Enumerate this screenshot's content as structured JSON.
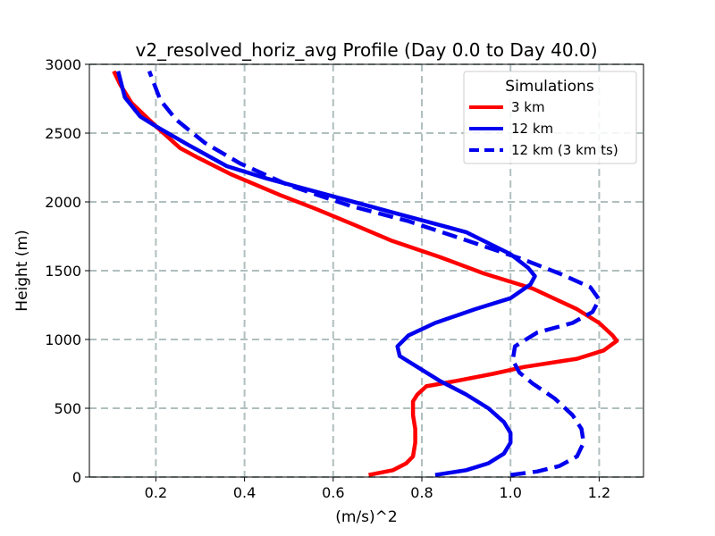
{
  "chart_data": {
    "type": "line",
    "title": "v2_resolved_horiz_avg Profile (Day 0.0 to Day 40.0)",
    "xlabel": "(m/s)^2",
    "ylabel": "Height (m)",
    "xlim": [
      0.05,
      1.3
    ],
    "ylim": [
      0,
      3000
    ],
    "xticks": [
      0.2,
      0.4,
      0.6,
      0.8,
      1.0,
      1.2
    ],
    "xtick_labels": [
      "0.2",
      "0.4",
      "0.6",
      "0.8",
      "1.0",
      "1.2"
    ],
    "yticks": [
      0,
      500,
      1000,
      1500,
      2000,
      2500,
      3000
    ],
    "ytick_labels": [
      "0",
      "500",
      "1000",
      "1500",
      "2000",
      "2500",
      "3000"
    ],
    "grid": true,
    "legend": {
      "title": "Simulations",
      "position": "top-right"
    },
    "series": [
      {
        "name": "3 km",
        "color": "#ff0000",
        "style": "solid",
        "points": [
          [
            0.68,
            15
          ],
          [
            0.735,
            50
          ],
          [
            0.765,
            100
          ],
          [
            0.78,
            150
          ],
          [
            0.785,
            250
          ],
          [
            0.785,
            350
          ],
          [
            0.78,
            450
          ],
          [
            0.78,
            550
          ],
          [
            0.79,
            600
          ],
          [
            0.81,
            660
          ],
          [
            0.88,
            700
          ],
          [
            0.96,
            750
          ],
          [
            1.03,
            800
          ],
          [
            1.15,
            860
          ],
          [
            1.21,
            920
          ],
          [
            1.24,
            990
          ],
          [
            1.23,
            1030
          ],
          [
            1.2,
            1120
          ],
          [
            1.15,
            1220
          ],
          [
            1.05,
            1370
          ],
          [
            0.94,
            1480
          ],
          [
            0.84,
            1600
          ],
          [
            0.73,
            1720
          ],
          [
            0.65,
            1830
          ],
          [
            0.56,
            1950
          ],
          [
            0.48,
            2050
          ],
          [
            0.37,
            2200
          ],
          [
            0.29,
            2330
          ],
          [
            0.255,
            2390
          ],
          [
            0.2,
            2550
          ],
          [
            0.145,
            2720
          ],
          [
            0.12,
            2850
          ],
          [
            0.105,
            2950
          ]
        ]
      },
      {
        "name": "12 km",
        "color": "#0000ee",
        "style": "solid",
        "points": [
          [
            0.83,
            15
          ],
          [
            0.9,
            50
          ],
          [
            0.95,
            100
          ],
          [
            0.985,
            170
          ],
          [
            1.0,
            250
          ],
          [
            1.0,
            320
          ],
          [
            0.985,
            400
          ],
          [
            0.95,
            500
          ],
          [
            0.9,
            600
          ],
          [
            0.84,
            700
          ],
          [
            0.79,
            800
          ],
          [
            0.75,
            880
          ],
          [
            0.745,
            950
          ],
          [
            0.77,
            1030
          ],
          [
            0.83,
            1120
          ],
          [
            0.92,
            1220
          ],
          [
            1.0,
            1300
          ],
          [
            1.045,
            1400
          ],
          [
            1.055,
            1460
          ],
          [
            1.04,
            1520
          ],
          [
            1.0,
            1620
          ],
          [
            0.9,
            1780
          ],
          [
            0.75,
            1910
          ],
          [
            0.6,
            2040
          ],
          [
            0.45,
            2170
          ],
          [
            0.36,
            2260
          ],
          [
            0.27,
            2420
          ],
          [
            0.2,
            2550
          ],
          [
            0.165,
            2620
          ],
          [
            0.13,
            2760
          ],
          [
            0.115,
            2950
          ]
        ]
      },
      {
        "name": "12 km (3 km ts)",
        "color": "#0000ee",
        "style": "dashed",
        "points": [
          [
            1.0,
            15
          ],
          [
            1.06,
            40
          ],
          [
            1.11,
            80
          ],
          [
            1.15,
            150
          ],
          [
            1.165,
            250
          ],
          [
            1.16,
            350
          ],
          [
            1.14,
            450
          ],
          [
            1.1,
            570
          ],
          [
            1.05,
            680
          ],
          [
            1.02,
            760
          ],
          [
            1.005,
            850
          ],
          [
            1.01,
            950
          ],
          [
            1.06,
            1050
          ],
          [
            1.14,
            1120
          ],
          [
            1.185,
            1200
          ],
          [
            1.2,
            1290
          ],
          [
            1.18,
            1380
          ],
          [
            1.11,
            1480
          ],
          [
            1.03,
            1580
          ],
          [
            0.92,
            1700
          ],
          [
            0.77,
            1860
          ],
          [
            0.64,
            1970
          ],
          [
            0.5,
            2120
          ],
          [
            0.39,
            2280
          ],
          [
            0.31,
            2430
          ],
          [
            0.245,
            2600
          ],
          [
            0.21,
            2740
          ],
          [
            0.185,
            2950
          ]
        ]
      }
    ]
  }
}
